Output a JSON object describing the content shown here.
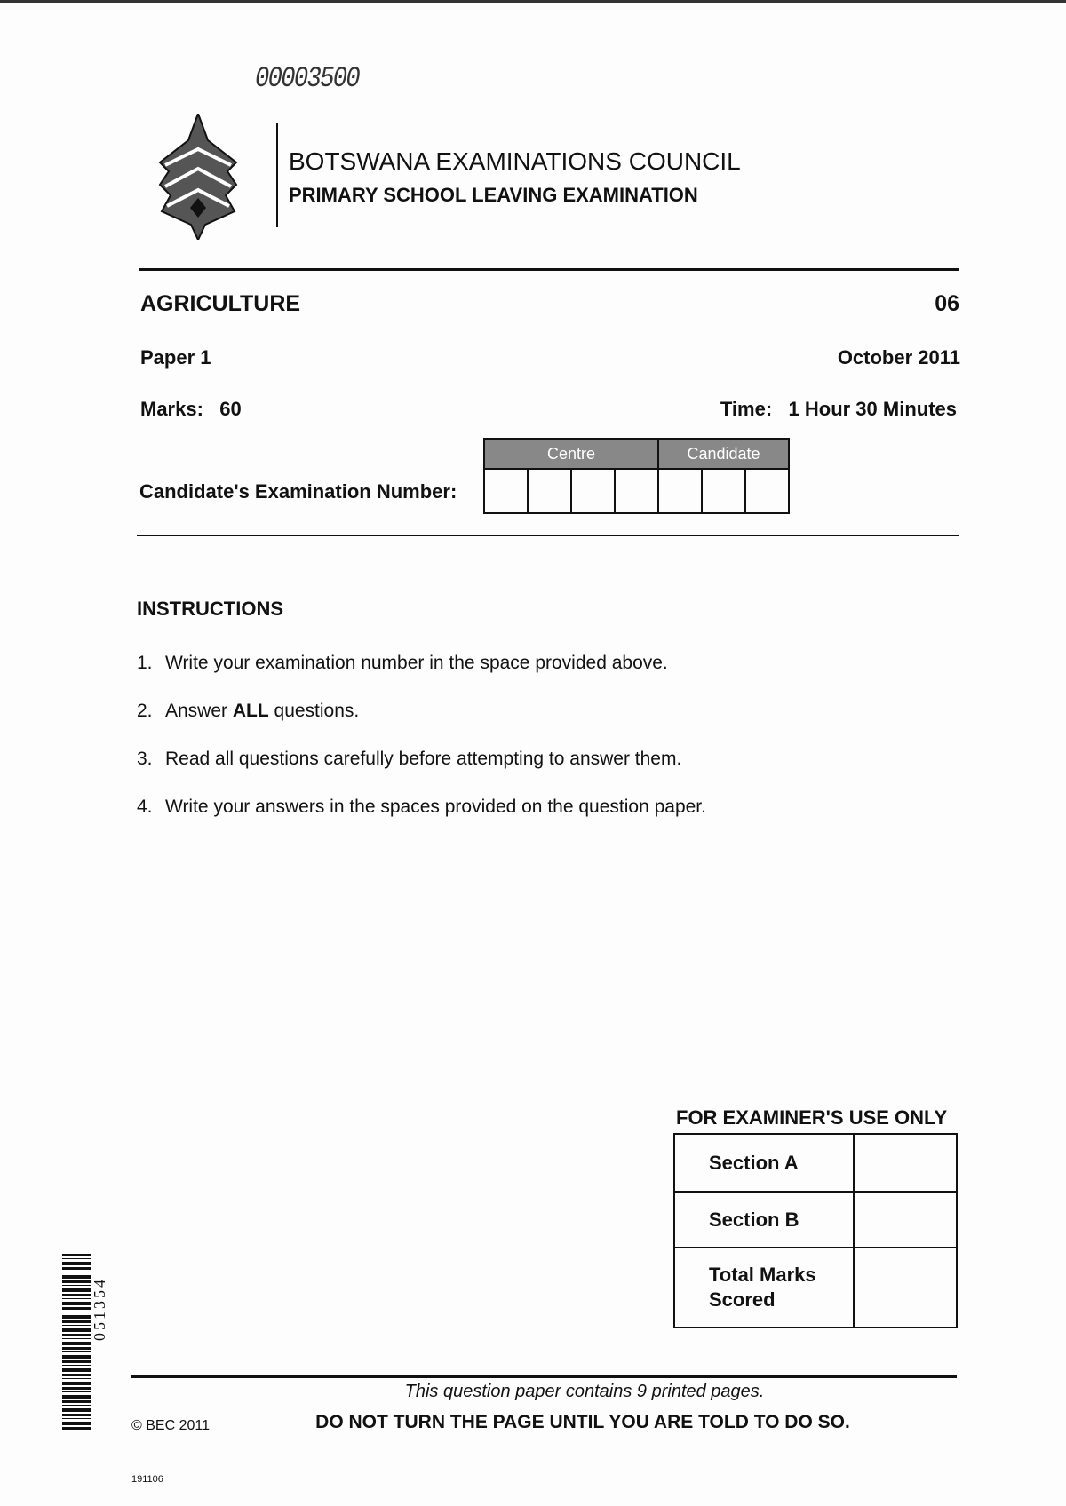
{
  "serial_number": "00003500",
  "header": {
    "organisation": "BOTSWANA EXAMINATIONS COUNCIL",
    "examination": "PRIMARY SCHOOL LEAVING EXAMINATION"
  },
  "paper": {
    "subject": "AGRICULTURE",
    "code": "06",
    "paper": "Paper 1",
    "date": "October 2011",
    "marks_label": "Marks:",
    "marks_value": "60",
    "time_label": "Time:",
    "time_value": "1 Hour 30 Minutes"
  },
  "candidate": {
    "label": "Candidate's Examination Number:",
    "centre_header": "Centre",
    "candidate_header": "Candidate"
  },
  "instructions": {
    "title": "INSTRUCTIONS",
    "items": [
      {
        "n": "1.",
        "text": "Write your examination number in the space provided above."
      },
      {
        "n": "2.",
        "pre": "Answer ",
        "bold": "ALL",
        "post": " questions."
      },
      {
        "n": "3.",
        "text": "Read all questions carefully before attempting to answer them."
      },
      {
        "n": "4.",
        "text": "Write your answers in the spaces provided on the question paper."
      }
    ]
  },
  "examiner": {
    "title": "FOR EXAMINER'S USE ONLY",
    "rows": [
      "Section A",
      "Section B",
      "Total Marks Scored"
    ]
  },
  "barcode_number": "051354",
  "footer": {
    "pages_note": "This question paper contains 9 printed pages.",
    "warning": "DO NOT TURN THE PAGE UNTIL YOU ARE TOLD TO DO SO.",
    "copyright": "© BEC 2011",
    "code": "191106"
  }
}
